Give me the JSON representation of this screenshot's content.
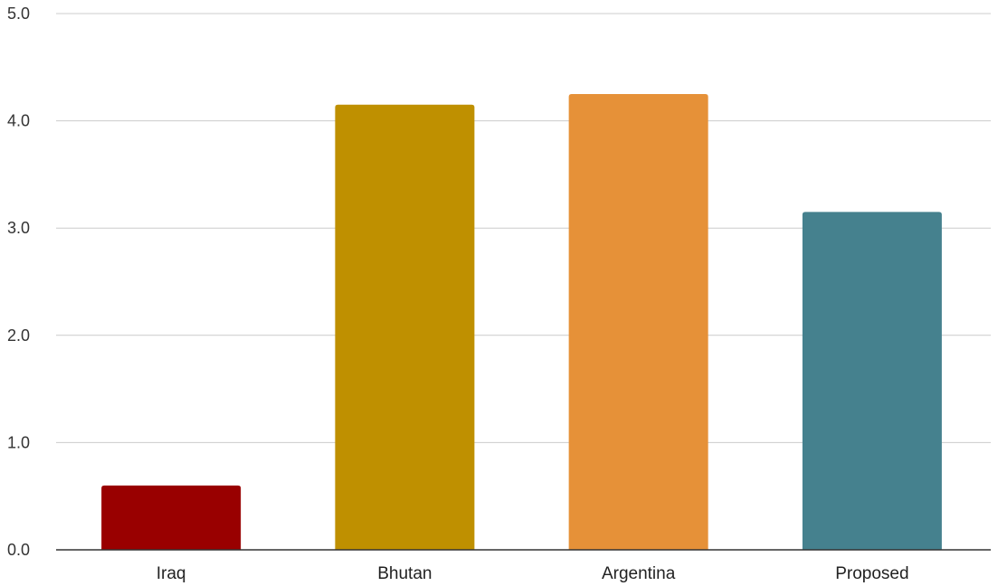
{
  "chart_data": {
    "type": "bar",
    "title": "",
    "xlabel": "",
    "ylabel": "",
    "categories": [
      "Iraq",
      "Bhutan",
      "Argentina",
      "Proposed"
    ],
    "values": [
      0.6,
      4.15,
      4.25,
      3.15
    ],
    "colors": [
      "#990000",
      "#bf9000",
      "#e69138",
      "#45818e"
    ],
    "ylim": [
      0,
      5
    ],
    "yticks": [
      0,
      1,
      2,
      3,
      4,
      5
    ],
    "ytick_labels": [
      "0.0",
      "1.0",
      "2.0",
      "3.0",
      "4.0",
      "5.0"
    ],
    "grid": true,
    "legend": "none"
  }
}
